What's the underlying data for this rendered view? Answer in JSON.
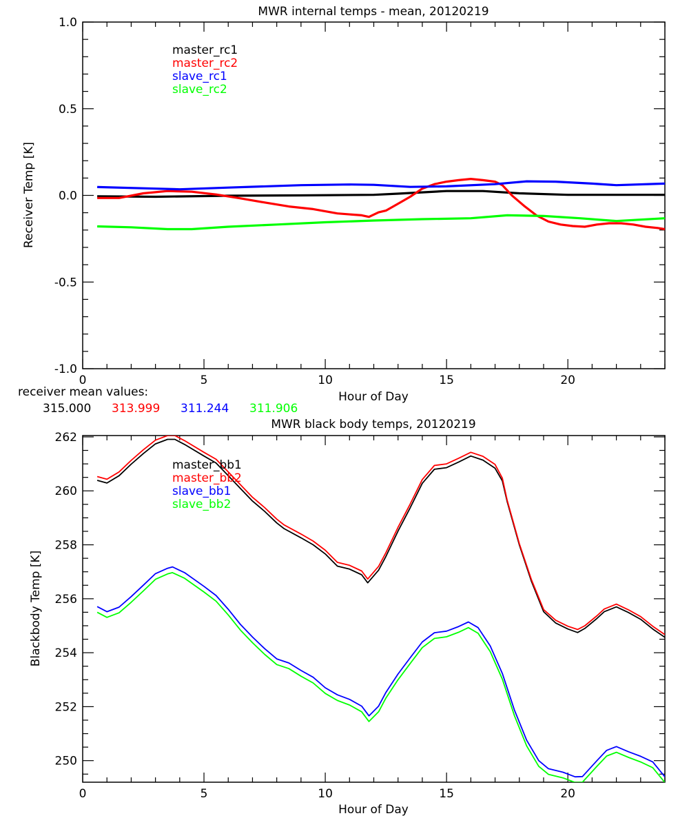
{
  "mean_values": {
    "label": "receiver mean values:",
    "values": [
      {
        "text": "315.000",
        "color": "#000000"
      },
      {
        "text": "313.999",
        "color": "#ff0000"
      },
      {
        "text": "311.244",
        "color": "#0000ff"
      },
      {
        "text": "311.906",
        "color": "#00ff00"
      }
    ]
  },
  "chart_data": [
    {
      "type": "line",
      "title": "MWR internal temps - mean, 20120219",
      "xlabel": "Hour of Day",
      "ylabel": "Receiver Temp [K]",
      "xlim": [
        0,
        24
      ],
      "ylim": [
        -1.0,
        1.0
      ],
      "xticks": [
        "0",
        "5",
        "10",
        "15",
        "20"
      ],
      "xtick_values": [
        0,
        5,
        10,
        15,
        20
      ],
      "yticks": [
        "-1.0",
        "-0.5",
        "0.0",
        "0.5",
        "1.0"
      ],
      "ytick_values": [
        -1.0,
        -0.5,
        0.0,
        0.5,
        1.0
      ],
      "grid": false,
      "legend_placement": "top-left",
      "series": [
        {
          "name": "master_rc1",
          "color": "#000000",
          "x": [
            0.6,
            3,
            6,
            9,
            12,
            13,
            15,
            16.5,
            18,
            20,
            24
          ],
          "y": [
            -0.005,
            -0.008,
            -0.002,
            0.0,
            0.003,
            0.01,
            0.025,
            0.025,
            0.012,
            0.003,
            0.003
          ]
        },
        {
          "name": "master_rc2",
          "color": "#ff0000",
          "x": [
            0.6,
            1.5,
            2.5,
            3.5,
            4.5,
            5.5,
            6.5,
            7.5,
            8.5,
            9.5,
            10.5,
            11.5,
            11.8,
            12.2,
            12.5,
            13,
            13.5,
            14,
            14.5,
            15,
            15.5,
            16,
            16.5,
            17,
            17.3,
            17.7,
            18.2,
            18.7,
            19.2,
            19.7,
            20.2,
            20.7,
            21.2,
            21.7,
            22.2,
            22.7,
            23.2,
            23.7,
            24
          ],
          "y": [
            -0.015,
            -0.015,
            0.012,
            0.025,
            0.021,
            0.005,
            -0.017,
            -0.041,
            -0.064,
            -0.079,
            -0.104,
            -0.115,
            -0.124,
            -0.098,
            -0.088,
            -0.048,
            -0.008,
            0.039,
            0.065,
            0.079,
            0.088,
            0.095,
            0.088,
            0.079,
            0.059,
            -0.001,
            -0.061,
            -0.115,
            -0.151,
            -0.168,
            -0.177,
            -0.181,
            -0.168,
            -0.161,
            -0.161,
            -0.168,
            -0.181,
            -0.188,
            -0.195
          ]
        },
        {
          "name": "slave_rc1",
          "color": "#0000ff",
          "x": [
            0.6,
            3,
            4,
            6,
            9,
            11,
            12,
            13.5,
            15,
            17,
            18.3,
            19.5,
            21,
            22,
            24
          ],
          "y": [
            0.048,
            0.039,
            0.035,
            0.045,
            0.059,
            0.063,
            0.061,
            0.049,
            0.052,
            0.065,
            0.081,
            0.079,
            0.068,
            0.059,
            0.068
          ]
        },
        {
          "name": "slave_rc2",
          "color": "#00ff00",
          "x": [
            0.6,
            2,
            3.5,
            4.5,
            6,
            8,
            10,
            12,
            14,
            16,
            17.5,
            19,
            20.5,
            22,
            24
          ],
          "y": [
            -0.179,
            -0.184,
            -0.195,
            -0.195,
            -0.181,
            -0.168,
            -0.155,
            -0.145,
            -0.137,
            -0.132,
            -0.115,
            -0.119,
            -0.132,
            -0.148,
            -0.132
          ]
        }
      ]
    },
    {
      "type": "line",
      "title": "MWR black body temps, 20120219",
      "xlabel": "Hour of Day",
      "ylabel": "Blackbody Temp [K]",
      "xlim": [
        0,
        24
      ],
      "ylim": [
        249.2,
        262.05
      ],
      "xticks": [
        "0",
        "5",
        "10",
        "15",
        "20"
      ],
      "xtick_values": [
        0,
        5,
        10,
        15,
        20
      ],
      "yticks": [
        "250",
        "252",
        "254",
        "256",
        "258",
        "260",
        "262"
      ],
      "ytick_values": [
        250,
        252,
        254,
        256,
        258,
        260,
        262
      ],
      "grid": false,
      "legend_placement": "top-left",
      "series": [
        {
          "name": "master_bb1",
          "color": "#000000",
          "x": [
            0.6,
            1.0,
            1.5,
            2.0,
            2.5,
            3.0,
            3.5,
            3.8,
            4.2,
            5.0,
            5.5,
            6.0,
            6.5,
            7.0,
            7.5,
            8.0,
            8.3,
            9.0,
            9.5,
            10.0,
            10.5,
            11.0,
            11.5,
            11.75,
            12.2,
            12.5,
            13.0,
            13.5,
            14.0,
            14.5,
            15.0,
            15.5,
            16.0,
            16.5,
            17.0,
            17.3,
            17.5,
            18.0,
            18.5,
            19.0,
            19.5,
            20.0,
            20.4,
            20.7,
            21.2,
            21.5,
            22.0,
            22.5,
            23.0,
            23.5,
            24.0
          ],
          "y": [
            260.39,
            260.29,
            260.56,
            260.99,
            261.38,
            261.74,
            261.91,
            261.91,
            261.72,
            261.29,
            261.03,
            260.56,
            260.09,
            259.62,
            259.24,
            258.81,
            258.6,
            258.26,
            258.0,
            257.66,
            257.21,
            257.1,
            256.89,
            256.59,
            257.06,
            257.57,
            258.51,
            259.37,
            260.28,
            260.8,
            260.86,
            261.07,
            261.29,
            261.14,
            260.84,
            260.37,
            259.6,
            257.99,
            256.64,
            255.52,
            255.1,
            254.88,
            254.75,
            254.9,
            255.27,
            255.52,
            255.7,
            255.49,
            255.24,
            254.88,
            254.57
          ]
        },
        {
          "name": "master_bb2",
          "color": "#ff0000",
          "x": [
            0.6,
            1.0,
            1.5,
            2.0,
            2.5,
            3.0,
            3.5,
            3.8,
            4.2,
            5.0,
            5.5,
            6.0,
            6.5,
            7.0,
            7.5,
            8.0,
            8.3,
            9.0,
            9.5,
            10.0,
            10.5,
            11.0,
            11.5,
            11.75,
            12.2,
            12.5,
            13.0,
            13.5,
            14.0,
            14.5,
            15.0,
            15.5,
            16.0,
            16.5,
            17.0,
            17.3,
            17.5,
            18.0,
            18.5,
            19.0,
            19.5,
            20.0,
            20.4,
            20.7,
            21.2,
            21.5,
            22.0,
            22.5,
            23.0,
            23.5,
            24.0
          ],
          "y": [
            260.53,
            260.43,
            260.7,
            261.13,
            261.52,
            261.88,
            262.05,
            262.05,
            261.86,
            261.43,
            261.17,
            260.7,
            260.23,
            259.76,
            259.38,
            258.95,
            258.74,
            258.4,
            258.14,
            257.8,
            257.35,
            257.24,
            257.03,
            256.73,
            257.2,
            257.71,
            258.65,
            259.51,
            260.42,
            260.94,
            261.0,
            261.21,
            261.43,
            261.28,
            260.98,
            260.47,
            259.65,
            258.04,
            256.7,
            255.6,
            255.2,
            254.98,
            254.86,
            255.0,
            255.37,
            255.62,
            255.8,
            255.59,
            255.34,
            254.98,
            254.67
          ]
        },
        {
          "name": "slave_bb1",
          "color": "#0000ff",
          "x": [
            0.6,
            1.0,
            1.5,
            2.0,
            2.5,
            3.0,
            3.5,
            3.7,
            4.2,
            5.0,
            5.5,
            6.0,
            6.5,
            7.0,
            7.5,
            8.0,
            8.5,
            9.0,
            9.5,
            10.0,
            10.5,
            11.0,
            11.5,
            11.8,
            12.2,
            12.5,
            13.0,
            13.5,
            14.0,
            14.5,
            15.0,
            15.5,
            15.9,
            16.3,
            16.8,
            17.3,
            17.8,
            18.3,
            18.8,
            19.2,
            19.8,
            20.3,
            20.6,
            21.2,
            21.6,
            22.0,
            22.5,
            23.0,
            23.5,
            24.0
          ],
          "y": [
            255.71,
            255.52,
            255.69,
            256.08,
            256.5,
            256.93,
            257.13,
            257.18,
            256.97,
            256.46,
            256.12,
            255.61,
            255.05,
            254.58,
            254.15,
            253.77,
            253.62,
            253.34,
            253.09,
            252.7,
            252.44,
            252.27,
            252.02,
            251.66,
            252.02,
            252.53,
            253.21,
            253.81,
            254.4,
            254.74,
            254.8,
            254.97,
            255.14,
            254.93,
            254.25,
            253.23,
            251.87,
            250.76,
            250.0,
            249.7,
            249.57,
            249.4,
            249.41,
            250.0,
            250.38,
            250.52,
            250.33,
            250.16,
            249.95,
            249.4
          ]
        },
        {
          "name": "slave_bb2",
          "color": "#00ff00",
          "x": [
            0.6,
            1.0,
            1.5,
            2.0,
            2.5,
            3.0,
            3.5,
            3.7,
            4.2,
            5.0,
            5.5,
            6.0,
            6.5,
            7.0,
            7.5,
            8.0,
            8.5,
            9.0,
            9.5,
            10.0,
            10.5,
            11.0,
            11.5,
            11.8,
            12.2,
            12.5,
            13.0,
            13.5,
            14.0,
            14.5,
            15.0,
            15.5,
            15.9,
            16.3,
            16.8,
            17.3,
            17.8,
            18.3,
            18.8,
            19.2,
            19.8,
            20.3,
            20.6,
            21.2,
            21.6,
            22.0,
            22.5,
            23.0,
            23.5,
            24.0
          ],
          "y": [
            255.5,
            255.31,
            255.48,
            255.87,
            256.29,
            256.72,
            256.92,
            256.97,
            256.76,
            256.25,
            255.91,
            255.4,
            254.84,
            254.37,
            253.94,
            253.56,
            253.41,
            253.13,
            252.88,
            252.49,
            252.23,
            252.06,
            251.81,
            251.45,
            251.81,
            252.32,
            253.0,
            253.6,
            254.19,
            254.53,
            254.59,
            254.76,
            254.93,
            254.72,
            254.04,
            253.02,
            251.66,
            250.55,
            249.79,
            249.49,
            249.36,
            249.19,
            249.2,
            249.79,
            250.17,
            250.31,
            250.12,
            249.95,
            249.74,
            249.19
          ]
        }
      ]
    }
  ]
}
